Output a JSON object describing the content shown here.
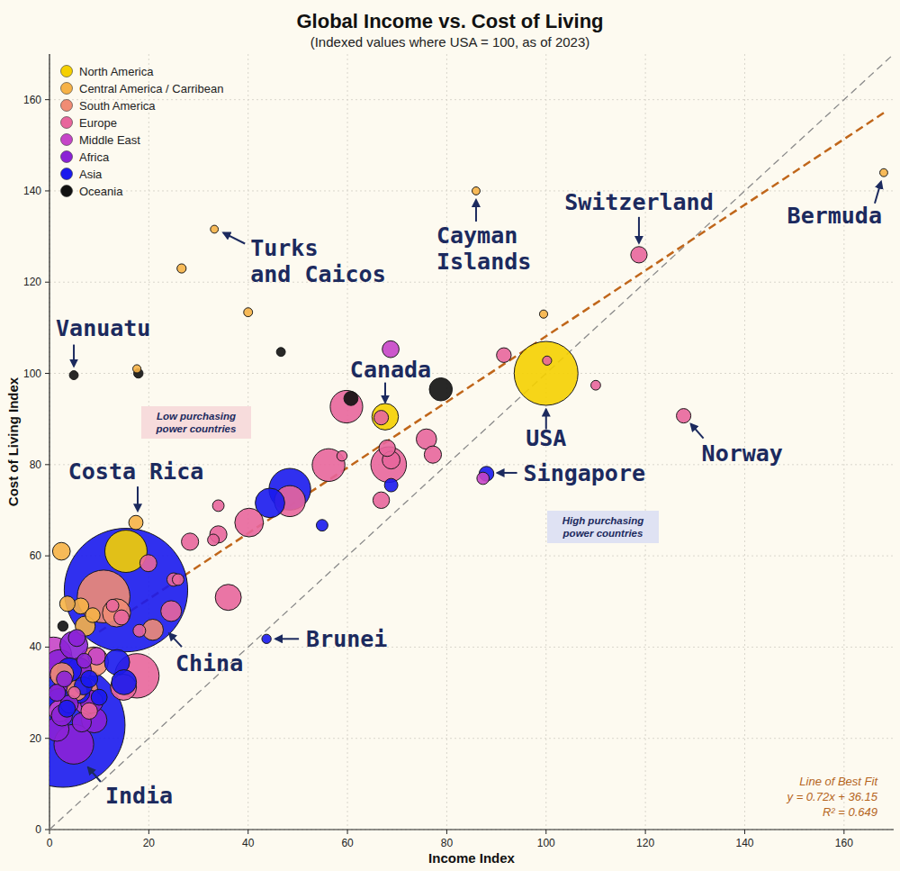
{
  "chart_data": {
    "type": "bubble",
    "title": "Global Income vs. Cost of Living",
    "subtitle": "(Indexed values where USA = 100, as of 2023)",
    "x_label": "Income Index",
    "y_label": "Cost of Living Index",
    "xlim": [
      0,
      170
    ],
    "ylim": [
      0,
      170
    ],
    "xticks": [
      0,
      20,
      40,
      60,
      80,
      100,
      120,
      140,
      160
    ],
    "yticks": [
      0,
      20,
      40,
      60,
      80,
      100,
      120,
      140,
      160
    ],
    "grid": true,
    "legend": "top-left",
    "series": [
      {
        "name": "North America",
        "color": "#f5d000",
        "x": [
          100,
          67.6,
          15.4
        ],
        "values": [
          100,
          90.5,
          61
        ],
        "sizes": [
          335,
          39,
          128
        ],
        "labels": [
          "USA",
          "Canada",
          null
        ]
      },
      {
        "name": "Central America / Carribean",
        "color": "#f6b247",
        "x": [
          168,
          85.9,
          33.2,
          17.4,
          26.6,
          40,
          17.6,
          99.5,
          2.4,
          3.6,
          6.3,
          7.2,
          8.7
        ],
        "values": [
          144,
          140,
          131.6,
          67.3,
          123,
          113.4,
          101,
          113,
          61,
          49.5,
          49,
          44.6,
          47
        ],
        "sizes": [
          0.06,
          0.07,
          0.05,
          5.2,
          0.4,
          0.3,
          0.1,
          0.1,
          11.5,
          7,
          8,
          17,
          6
        ],
        "labels": [
          "Bermuda",
          "Cayman Islands",
          "Turks and Caicos",
          "Costa Rica",
          null,
          null,
          null,
          null,
          null,
          null,
          null,
          null,
          null
        ]
      },
      {
        "name": "South America",
        "color": "#f08c74",
        "x": [
          10.9,
          13.5,
          8.9,
          7.2,
          20.8,
          5.5,
          2.5
        ],
        "values": [
          51.1,
          47.5,
          36.8,
          30.5,
          43.8,
          30.5,
          34
        ],
        "sizes": [
          216,
          46,
          52,
          34,
          20,
          18,
          28
        ],
        "labels": [
          null,
          null,
          null,
          null,
          null,
          null,
          null
        ]
      },
      {
        "name": "Europe",
        "color": "#e8669c",
        "x": [
          118.7,
          127.7,
          91.5,
          100.2,
          110,
          59.8,
          66.8,
          68,
          56.2,
          58.9,
          68.3,
          68.8,
          75.9,
          77.2,
          66.8,
          34,
          34,
          33,
          40.2,
          48.4,
          28.3,
          36,
          19.9,
          25,
          25.9,
          24.5,
          18.1,
          17.6,
          14.9,
          12.7,
          14.5,
          8,
          5
        ],
        "values": [
          126,
          90.7,
          104,
          102.8,
          97.4,
          92.7,
          90.3,
          83.6,
          79.9,
          81.9,
          80,
          81,
          85.6,
          82.2,
          72.2,
          71,
          64.7,
          63.5,
          67.3,
          72,
          63.1,
          50.9,
          58.4,
          54.8,
          54.8,
          47.9,
          43.6,
          33.7,
          31.2,
          49.1,
          46.5,
          26,
          30
        ],
        "sizes": [
          8.8,
          5.5,
          5.9,
          0.4,
          0.66,
          67,
          5.5,
          9,
          68,
          1,
          84,
          11.7,
          17.9,
          10.5,
          9.1,
          2,
          10.4,
          2,
          48,
          59,
          10.5,
          37,
          10,
          4,
          2,
          19,
          3,
          144,
          37,
          3,
          6.5,
          9,
          2.5
        ],
        "labels": [
          "Switzerland",
          "Norway",
          null,
          null,
          null,
          null,
          null,
          null,
          null,
          null,
          null,
          null,
          null,
          null,
          null,
          null,
          null,
          null,
          null,
          null,
          null,
          null,
          null,
          null,
          null,
          null,
          null,
          null,
          null,
          null,
          null,
          null,
          null
        ]
      },
      {
        "name": "Middle East",
        "color": "#c645c8",
        "x": [
          68.7,
          87.3,
          0.8,
          4.5,
          7.5,
          9.5,
          2
        ],
        "values": [
          105.3,
          77,
          38.2,
          32.5,
          28,
          38,
          26
        ],
        "sizes": [
          9.7,
          2.7,
          89,
          45,
          34,
          11,
          21
        ],
        "labels": [
          null,
          null,
          null,
          null,
          null,
          null,
          null
        ]
      },
      {
        "name": "Africa",
        "color": "#8b22d6",
        "x": [
          4.9,
          4.9,
          2,
          6,
          3,
          8.5,
          2.5,
          6.5,
          1.5,
          4,
          9,
          3,
          7,
          1.5,
          5.5
        ],
        "values": [
          18.7,
          40.4,
          36,
          35,
          30,
          28,
          25,
          23.5,
          22,
          27.5,
          24,
          33,
          37,
          30,
          42
        ],
        "sizes": [
          110,
          45,
          60,
          30,
          40,
          25,
          20,
          15,
          30,
          12,
          35,
          8,
          6,
          10,
          10
        ],
        "labels": [
          null,
          null,
          null,
          null,
          null,
          null,
          null,
          null,
          null,
          null,
          null,
          null,
          null,
          null,
          null
        ]
      },
      {
        "name": "Asia",
        "color": "#1a1aee",
        "x": [
          2.7,
          15.4,
          88,
          43.7,
          48.4,
          44.4,
          54.9,
          68.8,
          13.6,
          15,
          4,
          6,
          2,
          8,
          6.8,
          3.5,
          10
        ],
        "values": [
          22.9,
          52.5,
          78,
          41.8,
          74.6,
          71.6,
          66.7,
          75.5,
          36.7,
          32.3,
          35,
          30,
          28,
          33,
          31.5,
          26.5,
          29
        ],
        "sizes": [
          1430,
          1410,
          5.9,
          0.45,
          124,
          52,
          2,
          4,
          34,
          33,
          30,
          20,
          40,
          10,
          12,
          10,
          8
        ],
        "labels": [
          "India",
          "China",
          "Singapore",
          "Brunei",
          null,
          null,
          null,
          null,
          null,
          null,
          null,
          null,
          null,
          null,
          null,
          null,
          null
        ]
      },
      {
        "name": "Oceania",
        "color": "#111111",
        "x": [
          4.9,
          17.9,
          46.6,
          78.8,
          60.7,
          2.7
        ],
        "values": [
          99.6,
          100,
          104.7,
          96.5,
          94.5,
          44.6
        ],
        "sizes": [
          0.3,
          0.5,
          0.3,
          26,
          5,
          1
        ],
        "labels": [
          "Vanuatu",
          null,
          null,
          null,
          null,
          null
        ]
      }
    ],
    "reference_lines": [
      {
        "slope": 1,
        "intercept": 0,
        "x": [
          0,
          170
        ],
        "color": "#8a8a8a",
        "line_style": "dashed"
      },
      {
        "slope": 0.72,
        "intercept": 36.15,
        "x": [
          10,
          168
        ],
        "color": "#c0661a",
        "line_style": "dashed"
      }
    ],
    "annotations": {
      "low_ppp": [
        "Low purchasing",
        "power countries"
      ],
      "high_ppp": [
        "High purchasing",
        "power countries"
      ],
      "fit": [
        "Line of Best Fit",
        "y = 0.72x + 36.15",
        "R² = 0.649"
      ]
    }
  }
}
